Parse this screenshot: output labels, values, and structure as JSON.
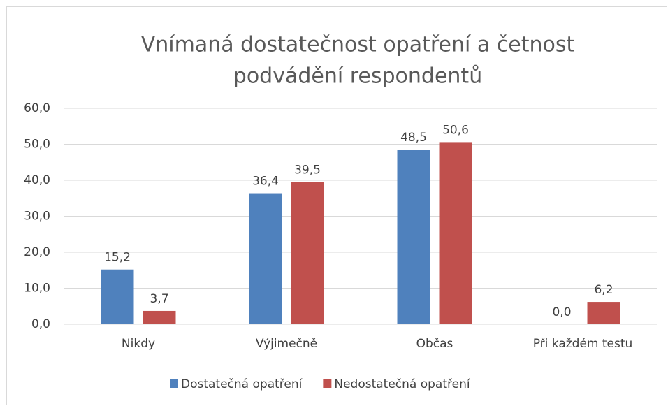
{
  "chart_data": {
    "type": "bar",
    "title": [
      "Vnímaná dostatečnost opatření a četnost",
      "podvádění respondentů"
    ],
    "categories": [
      "Nikdy",
      "Výjimečně",
      "Občas",
      "Při každém testu"
    ],
    "series": [
      {
        "name": "Dostatečná opatření",
        "color": "#4f81bd",
        "values": [
          15.2,
          36.4,
          48.5,
          0.0
        ],
        "value_labels": [
          "15,2",
          "36,4",
          "48,5",
          "0,0"
        ]
      },
      {
        "name": "Nedostatečná opatření",
        "color": "#c0504d",
        "values": [
          3.7,
          39.5,
          50.6,
          6.2
        ],
        "value_labels": [
          "3,7",
          "39,5",
          "50,6",
          "6,2"
        ]
      }
    ],
    "ylim": [
      0,
      60
    ],
    "yticks": [
      {
        "value": 0,
        "label": "0,0"
      },
      {
        "value": 10,
        "label": "10,0"
      },
      {
        "value": 20,
        "label": "20,0"
      },
      {
        "value": 30,
        "label": "30,0"
      },
      {
        "value": 40,
        "label": "40,0"
      },
      {
        "value": 50,
        "label": "50,0"
      },
      {
        "value": 60,
        "label": "60,0"
      }
    ],
    "grid": true,
    "legend": "bottom"
  }
}
